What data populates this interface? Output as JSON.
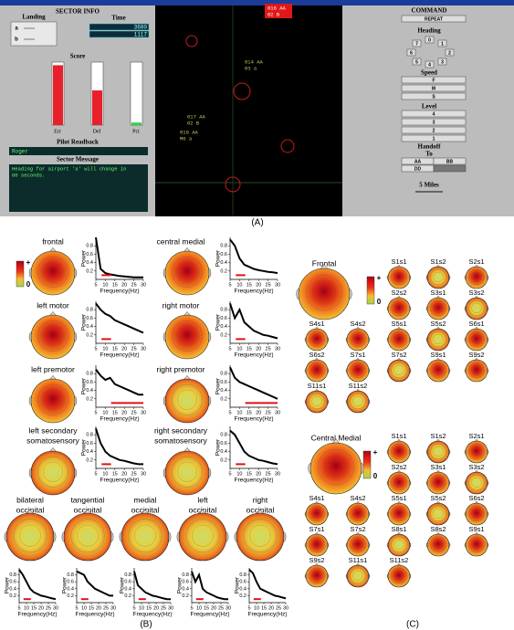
{
  "panel_labels": [
    "(A)",
    "(B)",
    "(C)"
  ],
  "screen": {
    "sector_info": {
      "title": "SECTOR INFO",
      "landing": "Landing",
      "landing_a": "a",
      "landing_b": "b",
      "time": "Time",
      "time_values": [
        3600,
        1117
      ],
      "score": "Score",
      "bars": [
        {
          "label": "Err",
          "value": 95,
          "color": "#e8202a"
        },
        {
          "label": "Del",
          "value": 55,
          "color": "#e8202a"
        },
        {
          "label": "Pct",
          "value": 4,
          "color": "#30d040"
        }
      ],
      "ylim": [
        0,
        100
      ],
      "readback_title": "Pilot Readback",
      "readback": "Roger",
      "message_title": "Sector Message",
      "message": [
        "Heading for airport 'a' will change in",
        "60 seconds."
      ]
    },
    "radar": {
      "aircraft": [
        [
          "016 AA",
          "02 B"
        ],
        [
          "014 AA",
          "03 a"
        ],
        [
          "017 AA",
          "02 B"
        ],
        [
          "019 AA",
          "M0 a"
        ]
      ]
    },
    "command": {
      "title": "COMMAND",
      "repeat": "REPEAT",
      "heading": "Heading",
      "heading_keys": [
        "7",
        "0",
        "1",
        "6",
        "2",
        "5",
        "4",
        "3"
      ],
      "speed": "Speed",
      "speed_keys": [
        "F",
        "M",
        "S"
      ],
      "level": "Level",
      "level_keys": [
        "4",
        "3",
        "2",
        "1"
      ],
      "handoff": "Handoff",
      "to": "To",
      "handoff_keys": [
        "AA",
        "BB",
        "DD"
      ],
      "scale": "5 Miles"
    }
  },
  "eeg": {
    "colorbar": [
      "+",
      "0"
    ],
    "axes": {
      "ylabel": "Power",
      "xlabel": "Frequency(Hz)",
      "xlim": [
        5,
        30
      ],
      "ylim": [
        0,
        1
      ],
      "xticks": [
        5,
        10,
        15,
        20,
        25,
        30
      ],
      "yticks": [
        0.2,
        0.4,
        0.6,
        0.8
      ],
      "freq": [
        5,
        7.5,
        10,
        12.5,
        15,
        17.5,
        20,
        22.5,
        25,
        27.5,
        30
      ]
    },
    "regions": [
      {
        "name": [
          "frontal"
        ],
        "values": [
          1.0,
          0.25,
          0.15,
          0.12,
          0.1,
          0.08,
          0.07,
          0.06,
          0.05,
          0.05,
          0.05
        ],
        "band": [
          8,
          13
        ]
      },
      {
        "name": [
          "central medial"
        ],
        "values": [
          0.95,
          0.8,
          0.5,
          0.35,
          0.3,
          0.25,
          0.22,
          0.2,
          0.18,
          0.17,
          0.15
        ],
        "band": [
          8,
          13
        ]
      },
      {
        "name": [
          "left motor"
        ],
        "values": [
          0.95,
          0.8,
          0.7,
          0.65,
          0.55,
          0.5,
          0.45,
          0.4,
          0.35,
          0.3,
          0.25
        ],
        "band": [
          8,
          13
        ]
      },
      {
        "name": [
          "right motor"
        ],
        "values": [
          0.95,
          0.6,
          0.8,
          0.5,
          0.4,
          0.3,
          0.25,
          0.2,
          0.18,
          0.15,
          0.12
        ],
        "band": [
          8,
          13
        ]
      },
      {
        "name": [
          "left premotor"
        ],
        "values": [
          0.9,
          0.75,
          0.65,
          0.7,
          0.55,
          0.5,
          0.45,
          0.4,
          0.35,
          0.3,
          0.3
        ],
        "band": [
          13,
          30
        ]
      },
      {
        "name": [
          "right premotor"
        ],
        "values": [
          0.95,
          0.7,
          0.6,
          0.55,
          0.5,
          0.45,
          0.4,
          0.35,
          0.3,
          0.25,
          0.2
        ],
        "band": [
          13,
          30
        ]
      },
      {
        "name": [
          "left secondary",
          "somatosensory"
        ],
        "values": [
          0.95,
          0.6,
          0.4,
          0.3,
          0.25,
          0.2,
          0.18,
          0.15,
          0.12,
          0.1,
          0.1
        ],
        "band": [
          8,
          13
        ]
      },
      {
        "name": [
          "right secondary",
          "somatosensory"
        ],
        "values": [
          0.9,
          0.8,
          0.6,
          0.4,
          0.3,
          0.25,
          0.2,
          0.18,
          0.15,
          0.12,
          0.1
        ],
        "band": [
          8,
          13
        ]
      },
      {
        "name": [
          "bilateral",
          "occipital"
        ],
        "values": [
          0.95,
          0.8,
          0.6,
          0.4,
          0.3,
          0.25,
          0.2,
          0.18,
          0.15,
          0.12,
          0.1
        ],
        "band": [
          8,
          13
        ]
      },
      {
        "name": [
          "tangential",
          "occipital"
        ],
        "values": [
          0.9,
          0.85,
          0.8,
          0.6,
          0.5,
          0.4,
          0.35,
          0.3,
          0.25,
          0.2,
          0.2
        ],
        "band": [
          8,
          13
        ]
      },
      {
        "name": [
          "medial",
          "occipital"
        ],
        "values": [
          0.9,
          0.5,
          0.4,
          0.3,
          0.25,
          0.2,
          0.18,
          0.15,
          0.12,
          0.1,
          0.1
        ],
        "band": [
          8,
          13
        ]
      },
      {
        "name": [
          "left",
          "occipital"
        ],
        "values": [
          0.9,
          0.6,
          0.8,
          0.4,
          0.3,
          0.25,
          0.2,
          0.15,
          0.12,
          0.1,
          0.1
        ],
        "band": [
          8,
          13
        ]
      },
      {
        "name": [
          "right",
          "occipital"
        ],
        "values": [
          0.95,
          0.85,
          0.6,
          0.4,
          0.35,
          0.3,
          0.25,
          0.2,
          0.18,
          0.15,
          0.12
        ],
        "band": [
          8,
          13
        ]
      }
    ]
  },
  "subjects": {
    "colorbar": [
      "+",
      "0"
    ],
    "groups": [
      {
        "title": "Frontal",
        "labels": [
          "S1s1",
          "S1s2",
          "S2s1",
          "S2s2",
          "S3s1",
          "S3s2",
          "S4s1",
          "S4s2",
          "S5s1",
          "S5s2",
          "S6s1",
          "S6s2",
          "S7s1",
          "S7s2",
          "S9s1",
          "S9s2",
          "S11s1",
          "S11s2"
        ]
      },
      {
        "title": "Central Medial",
        "labels": [
          "S1s1",
          "S1s2",
          "S2s1",
          "S2s2",
          "S3s1",
          "S3s2",
          "S4s1",
          "S4s2",
          "S5s1",
          "S5s2",
          "S6s2",
          "S7s1",
          "S7s2",
          "S8s1",
          "S8s2",
          "S9s1",
          "S9s2",
          "S11s1",
          "S11s2"
        ]
      }
    ]
  }
}
